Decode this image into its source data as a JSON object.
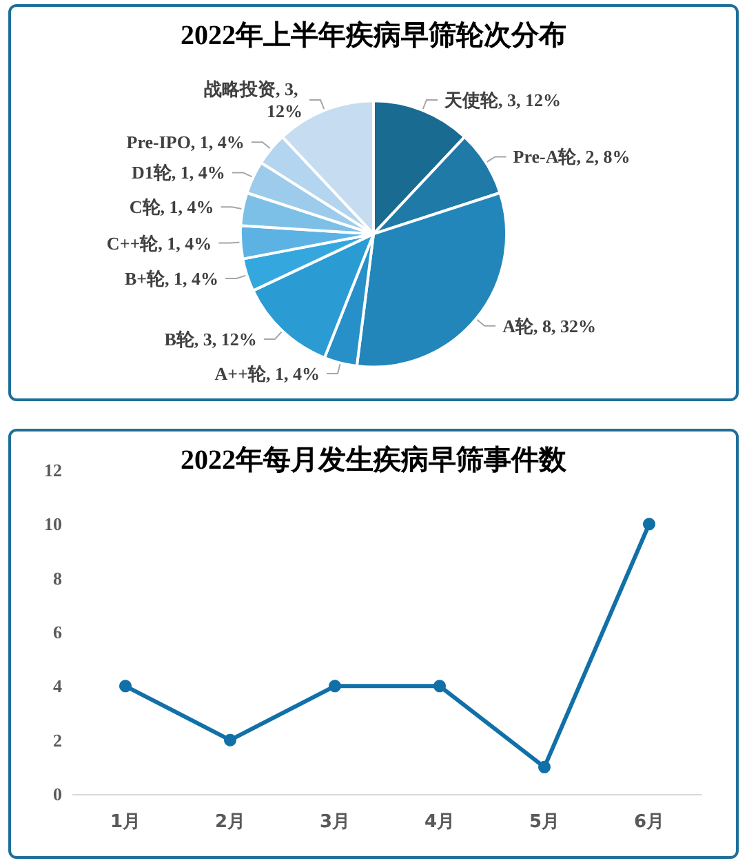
{
  "chart_data": [
    {
      "type": "pie",
      "title": "2022年上半年疾病早筛轮次分布",
      "categories": [
        "天使轮",
        "Pre-A轮",
        "A轮",
        "A++轮",
        "B轮",
        "B+轮",
        "C++轮",
        "C轮",
        "D1轮",
        "Pre-IPO",
        "战略投资"
      ],
      "values": [
        3,
        2,
        8,
        1,
        3,
        1,
        1,
        1,
        1,
        1,
        3
      ],
      "value_labels": [
        "3, 12%",
        "2, 8%",
        "8, 32%",
        "1, 4%",
        "3, 12%",
        "1, 4%",
        "1, 4%",
        "1, 4%",
        "1, 4%",
        "1, 4%",
        "3, 12%"
      ],
      "colors": [
        "#1a6b92",
        "#1f7aa8",
        "#2286ba",
        "#2790c8",
        "#2a9bd3",
        "#34a8de",
        "#5cb3e3",
        "#7cc0e8",
        "#9dcbeb",
        "#b3d5ef",
        "#c6ddf1"
      ],
      "legend": false
    },
    {
      "type": "line",
      "title": "2022年每月发生疾病早筛事件数",
      "categories": [
        "1月",
        "2月",
        "3月",
        "4月",
        "5月",
        "6月"
      ],
      "series": [
        {
          "color": "#1170a8",
          "values": [
            4,
            2,
            4,
            4,
            1,
            10
          ]
        }
      ],
      "ylim": [
        0,
        12
      ],
      "yticks": [
        0,
        2,
        4,
        6,
        8,
        10,
        12
      ],
      "grid": false,
      "marker": "circle",
      "legend": false
    }
  ]
}
